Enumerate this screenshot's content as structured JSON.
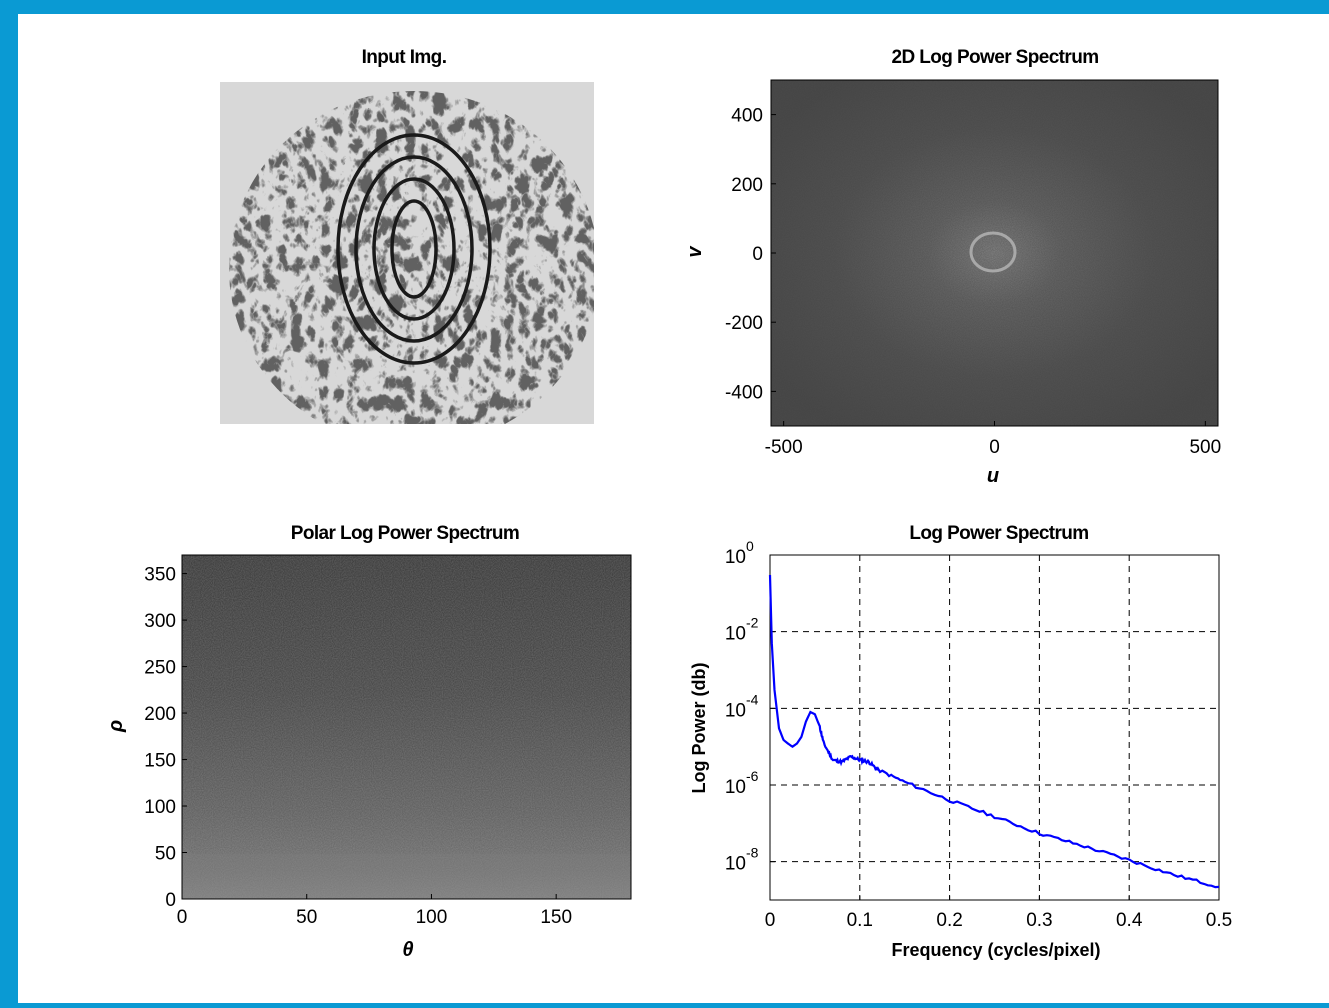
{
  "panels": {
    "input": {
      "title": "Input Img."
    },
    "spectrum2d": {
      "title": "2D Log Power Spectrum",
      "xlabel": "u",
      "ylabel": "v",
      "xticks": [
        "-500",
        "0",
        "500"
      ],
      "yticks": [
        "400",
        "200",
        "0",
        "-200",
        "-400"
      ]
    },
    "polar": {
      "title": "Polar Log Power Spectrum",
      "xlabel": "θ",
      "ylabel": "ρ",
      "xticks": [
        "0",
        "50",
        "100",
        "150"
      ],
      "yticks": [
        "350",
        "300",
        "250",
        "200",
        "150",
        "100",
        "50",
        "0"
      ]
    },
    "logpower": {
      "title": "Log Power Spectrum",
      "xlabel": "Frequency (cycles/pixel)",
      "ylabel": "Log Power (db)",
      "xticks": [
        "0",
        "0.1",
        "0.2",
        "0.3",
        "0.4",
        "0.5"
      ],
      "yticks_base": [
        "10",
        "10",
        "10",
        "10",
        "10"
      ],
      "yticks_exp": [
        "0",
        "-2",
        "-4",
        "-6",
        "-8"
      ]
    }
  },
  "chart_data": [
    {
      "type": "image",
      "title": "Input Img."
    },
    {
      "type": "heatmap",
      "title": "2D Log Power Spectrum",
      "xlabel": "u",
      "ylabel": "v",
      "xlim": [
        -530,
        530
      ],
      "ylim": [
        -500,
        500
      ]
    },
    {
      "type": "heatmap",
      "title": "Polar Log Power Spectrum",
      "xlabel": "θ",
      "ylabel": "ρ",
      "xlim": [
        0,
        180
      ],
      "ylim": [
        0,
        370
      ]
    },
    {
      "type": "line",
      "title": "Log Power Spectrum",
      "xlabel": "Frequency (cycles/pixel)",
      "ylabel": "Log Power (db)",
      "xlim": [
        0,
        0.5
      ],
      "ylim": [
        1e-09,
        1
      ],
      "yscale": "log",
      "grid": true,
      "color": "#0000ff",
      "x": [
        0,
        0.002,
        0.005,
        0.01,
        0.015,
        0.02,
        0.025,
        0.03,
        0.035,
        0.04,
        0.045,
        0.05,
        0.055,
        0.06,
        0.07,
        0.08,
        0.09,
        0.1,
        0.11,
        0.12,
        0.15,
        0.2,
        0.25,
        0.3,
        0.35,
        0.4,
        0.45,
        0.5
      ],
      "y": [
        0.3,
        0.005,
        0.0003,
        3e-05,
        1.5e-05,
        1.2e-05,
        1e-05,
        1.2e-05,
        1.8e-05,
        4.5e-05,
        8e-05,
        7e-05,
        3.5e-05,
        1.2e-05,
        4.5e-06,
        4e-06,
        5.5e-06,
        4.5e-06,
        4e-06,
        2.5e-06,
        1.2e-06,
        4e-07,
        1.5e-07,
        5.5e-08,
        2.5e-08,
        1.1e-08,
        4.5e-09,
        2.2e-09
      ]
    }
  ]
}
